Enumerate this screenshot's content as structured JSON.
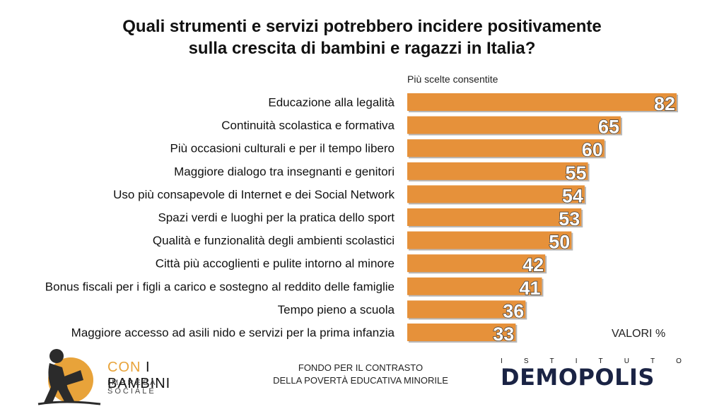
{
  "title_line1": "Quali strumenti e servizi potrebbero incidere positivamente",
  "title_line2": "sulla crescita di bambini e ragazzi in Italia?",
  "note": "Più scelte consentite",
  "units_label": "VALORI %",
  "logos": {
    "left_name_part1": "CON",
    "left_name_part2": "I BAMBINI",
    "left_tagline": "IMPRESA SOCIALE",
    "fund_line1": "FONDO PER IL CONTRASTO",
    "fund_line2": "DELLA POVERTÀ EDUCATIVA MINORILE",
    "right_top": "ISTITUTO",
    "right_name": "DEMOPOLIS"
  },
  "colors": {
    "bar": "#e6913a",
    "bar_shadow": "#b8b8b8",
    "label_fill": "#ffffff",
    "label_stroke": "#333333",
    "accent": "#e8a33a",
    "brand_dark": "#1a2344"
  },
  "chart_data": {
    "type": "bar",
    "orientation": "horizontal",
    "categories": [
      "Educazione alla legalità",
      "Continuità scolastica e formativa",
      "Più occasioni culturali e per il tempo libero",
      "Maggiore dialogo tra insegnanti e genitori",
      "Uso più consapevole di Internet e dei Social Network",
      "Spazi verdi e luoghi per la pratica dello sport",
      "Qualità e funzionalità degli ambienti scolastici",
      "Città più accoglienti e pulite intorno al minore",
      "Bonus fiscali per i figli a carico e sostegno al reddito delle famiglie",
      "Tempo pieno a scuola",
      "Maggiore accesso ad asili nido e servizi per la prima infanzia"
    ],
    "values": [
      82,
      65,
      60,
      55,
      54,
      53,
      50,
      42,
      41,
      36,
      33
    ],
    "xlim": [
      0,
      82
    ],
    "grid": false,
    "legend": "none"
  }
}
